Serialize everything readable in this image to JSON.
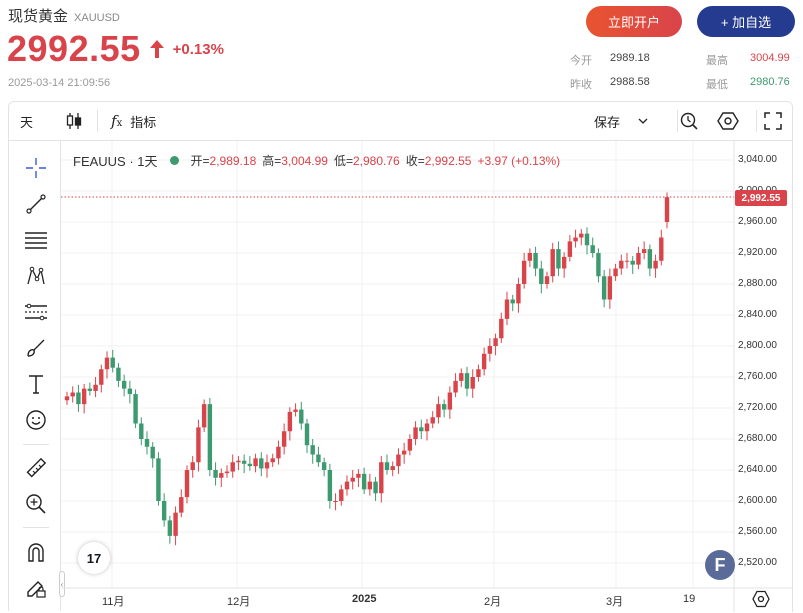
{
  "header": {
    "title": "现货黄金",
    "symbol": "XAUUSD",
    "price": "2992.55",
    "change": "+0.13%",
    "timestamp": "2025-03-14 21:09:56",
    "open_account_label": "立即开户",
    "add_watch_label": "+ 加自选",
    "stats": {
      "open_label": "今开",
      "open_value": "2989.18",
      "high_label": "最高",
      "high_value": "3004.99",
      "prev_close_label": "昨收",
      "prev_close_value": "2988.58",
      "low_label": "最低",
      "low_value": "2980.76"
    },
    "colors": {
      "up": "#d9444b",
      "down": "#3d9970",
      "high": "#d9444b",
      "low": "#3d9970"
    }
  },
  "toolbar": {
    "interval_label": "天",
    "indicators_label": "指标",
    "save_label": "保存",
    "icons": [
      "candlestick-icon",
      "fx-icon",
      "chevron-down-icon",
      "alert-icon",
      "settings-icon",
      "fullscreen-icon"
    ]
  },
  "sidebar": {
    "tools": [
      "crosshair-icon",
      "trendline-icon",
      "fib-lines-icon",
      "pattern-icon",
      "measure-lines-icon",
      "brush-icon",
      "text-icon",
      "emoji-icon",
      "ruler-icon",
      "zoom-icon",
      "magnet-icon",
      "lock-pencil-icon"
    ]
  },
  "legend": {
    "symbol": "FEAUUS · 1天",
    "open_label": "开=",
    "open_value": "2,989.18",
    "high_label": "高=",
    "high_value": "3,004.99",
    "low_label": "低=",
    "low_value": "2,980.76",
    "close_label": "收=",
    "close_value": "2,992.55",
    "change_value": "+3.97 (+0.13%)"
  },
  "last_price_tag": "2,992.55",
  "tv_logo": "17",
  "f_badge": "F",
  "chart_data": {
    "type": "candlestick",
    "y_ticks": [
      "3,040.00",
      "3,000.00",
      "2,960.00",
      "2,920.00",
      "2,880.00",
      "2,840.00",
      "2,800.00",
      "2,760.00",
      "2,720.00",
      "2,680.00",
      "2,640.00",
      "2,600.00",
      "2,560.00",
      "2,520.00"
    ],
    "x_ticks": [
      "11月",
      "12月",
      "2025",
      "2月",
      "3月",
      "19"
    ],
    "ylim": [
      2500,
      3050
    ],
    "last_price": 2992.55,
    "closes": [
      2735,
      2740,
      2725,
      2745,
      2742,
      2750,
      2770,
      2785,
      2772,
      2755,
      2745,
      2738,
      2700,
      2680,
      2670,
      2655,
      2600,
      2575,
      2555,
      2585,
      2605,
      2640,
      2650,
      2695,
      2725,
      2640,
      2630,
      2636,
      2638,
      2650,
      2652,
      2648,
      2645,
      2655,
      2642,
      2650,
      2655,
      2670,
      2690,
      2715,
      2718,
      2700,
      2672,
      2660,
      2650,
      2640,
      2600,
      2600,
      2615,
      2625,
      2630,
      2635,
      2615,
      2625,
      2610,
      2650,
      2640,
      2645,
      2660,
      2665,
      2680,
      2695,
      2690,
      2700,
      2708,
      2725,
      2718,
      2740,
      2755,
      2765,
      2745,
      2760,
      2770,
      2790,
      2800,
      2810,
      2835,
      2860,
      2855,
      2880,
      2910,
      2920,
      2900,
      2880,
      2890,
      2925,
      2900,
      2915,
      2935,
      2940,
      2945,
      2930,
      2920,
      2890,
      2860,
      2890,
      2900,
      2910,
      2910,
      2905,
      2920,
      2925,
      2900,
      2910,
      2940,
      2992
    ]
  }
}
